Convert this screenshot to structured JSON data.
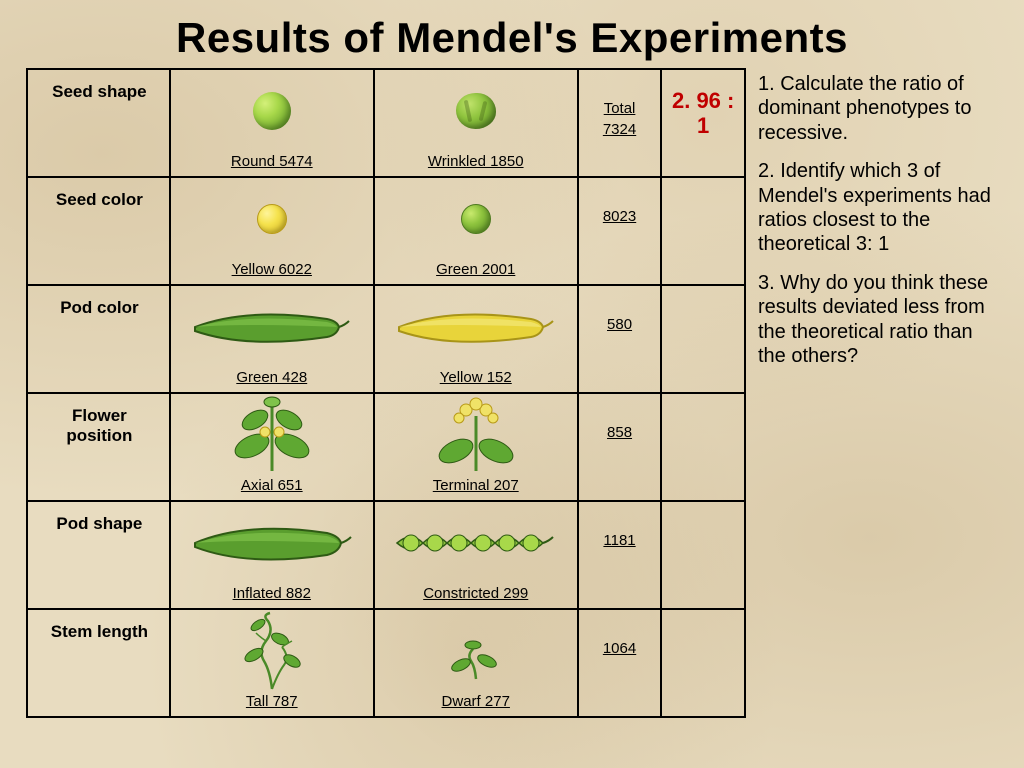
{
  "title": "Results of Mendel's Experiments",
  "table": {
    "rows": [
      {
        "trait": "Seed shape",
        "dominant": {
          "label": "Round 5474",
          "icon": "seed-round"
        },
        "recessive": {
          "label": "Wrinkled 1850",
          "icon": "seed-wrinkled"
        },
        "total_prefix": "Total",
        "total": "7324",
        "ratio": "2. 96 : 1"
      },
      {
        "trait": "Seed color",
        "dominant": {
          "label": "Yellow 6022",
          "icon": "seed-yellow"
        },
        "recessive": {
          "label": "Green 2001",
          "icon": "seed-green-sm"
        },
        "total_prefix": "",
        "total": "8023",
        "ratio": ""
      },
      {
        "trait": "Pod color",
        "dominant": {
          "label": "Green 428",
          "icon": "pod-green"
        },
        "recessive": {
          "label": "Yellow 152",
          "icon": "pod-yellow"
        },
        "total_prefix": "",
        "total": "580",
        "ratio": ""
      },
      {
        "trait": "Flower position",
        "dominant": {
          "label": "Axial 651",
          "icon": "flower-axial"
        },
        "recessive": {
          "label": "Terminal 207",
          "icon": "flower-terminal"
        },
        "total_prefix": "",
        "total": "858",
        "ratio": ""
      },
      {
        "trait": "Pod shape",
        "dominant": {
          "label": "Inflated 882",
          "icon": "pod-inflated"
        },
        "recessive": {
          "label": "Constricted 299",
          "icon": "pod-constricted"
        },
        "total_prefix": "",
        "total": "1181",
        "ratio": ""
      },
      {
        "trait": "Stem length",
        "dominant": {
          "label": "Tall 787",
          "icon": "stem-tall"
        },
        "recessive": {
          "label": "Dwarf 277",
          "icon": "stem-dwarf"
        },
        "total_prefix": "",
        "total": "1064",
        "ratio": ""
      }
    ]
  },
  "questions": {
    "q1": "1. Calculate the ratio of dominant phenotypes to recessive.",
    "q2": "2. Identify which 3 of Mendel's experiments had ratios closest to the theoretical 3: 1",
    "q3": "3. Why do you think these results deviated less from the theoretical ratio than the others?"
  },
  "style": {
    "title_fontsize": 42,
    "title_color": "#000000",
    "body_fontsize": 20,
    "ratio_color": "#c00000",
    "border_color": "#000000",
    "background_color": "#e8dcc0",
    "colors": {
      "seed_round": "#8fc43e",
      "seed_wrinkled": "#6fa82e",
      "seed_yellow": "#f5e24d",
      "seed_green": "#8fc43e",
      "pod_green": "#5a9e2e",
      "pod_yellow": "#e8d43a",
      "pod_outline": "#2e5a14",
      "flower_stem": "#4a8a28",
      "flower_petal": "#f0e267",
      "leaf": "#5fa832"
    }
  }
}
